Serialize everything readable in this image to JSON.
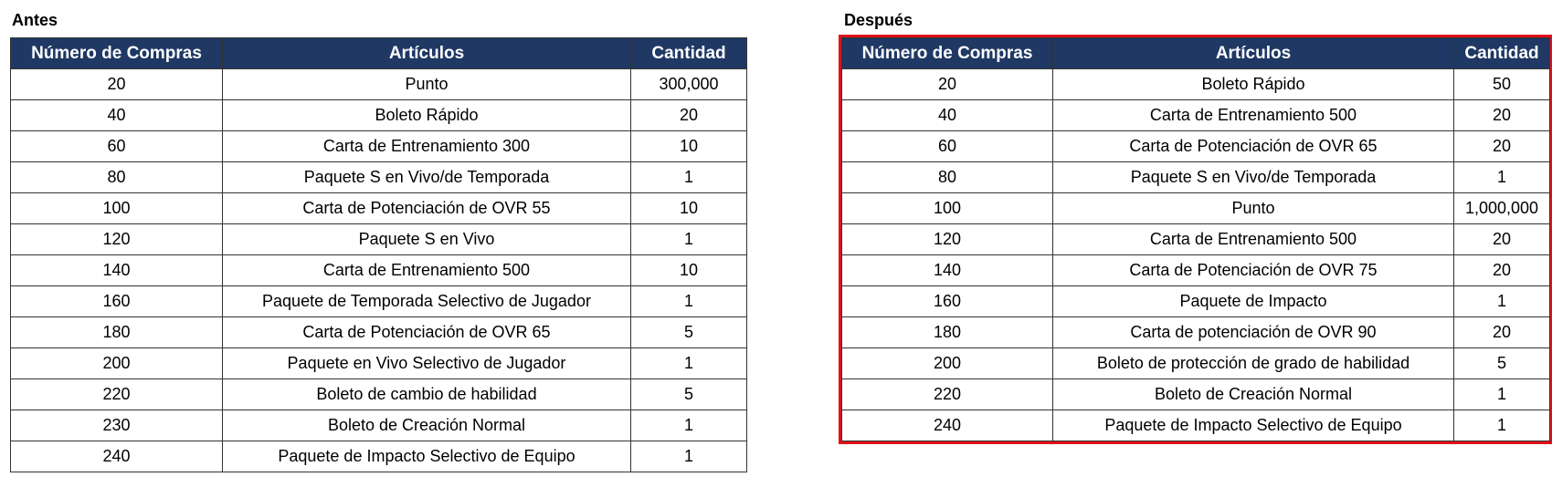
{
  "tables": [
    {
      "title": "Antes",
      "columns": [
        "Número de Compras",
        "Artículos",
        "Cantidad"
      ],
      "rows": [
        [
          "20",
          "Punto",
          "300,000"
        ],
        [
          "40",
          "Boleto Rápido",
          "20"
        ],
        [
          "60",
          "Carta de Entrenamiento 300",
          "10"
        ],
        [
          "80",
          "Paquete S en Vivo/de Temporada",
          "1"
        ],
        [
          "100",
          "Carta de Potenciación de OVR 55",
          "10"
        ],
        [
          "120",
          "Paquete S en Vivo",
          "1"
        ],
        [
          "140",
          "Carta de Entrenamiento 500",
          "10"
        ],
        [
          "160",
          "Paquete de Temporada Selectivo de Jugador",
          "1"
        ],
        [
          "180",
          "Carta de Potenciación de OVR 65",
          "5"
        ],
        [
          "200",
          "Paquete en Vivo Selectivo de Jugador",
          "1"
        ],
        [
          "220",
          "Boleto de cambio de habilidad",
          "5"
        ],
        [
          "230",
          "Boleto de Creación Normal",
          "1"
        ],
        [
          "240",
          "Paquete de Impacto Selectivo de Equipo",
          "1"
        ]
      ]
    },
    {
      "title": "Después",
      "columns": [
        "Número de Compras",
        "Artículos",
        "Cantidad"
      ],
      "rows": [
        [
          "20",
          "Boleto Rápido",
          "50"
        ],
        [
          "40",
          "Carta de Entrenamiento 500",
          "20"
        ],
        [
          "60",
          "Carta de Potenciación de OVR 65",
          "20"
        ],
        [
          "80",
          "Paquete S en Vivo/de Temporada",
          "1"
        ],
        [
          "100",
          "Punto",
          "1,000,000"
        ],
        [
          "120",
          "Carta de Entrenamiento 500",
          "20"
        ],
        [
          "140",
          "Carta de Potenciación de OVR 75",
          "20"
        ],
        [
          "160",
          "Paquete de Impacto",
          "1"
        ],
        [
          "180",
          "Carta de potenciación de OVR 90",
          "20"
        ],
        [
          "200",
          "Boleto de protección de grado de habilidad",
          "5"
        ],
        [
          "220",
          "Boleto de Creación Normal",
          "1"
        ],
        [
          "240",
          "Paquete de Impacto Selectivo de Equipo",
          "1"
        ]
      ]
    }
  ]
}
